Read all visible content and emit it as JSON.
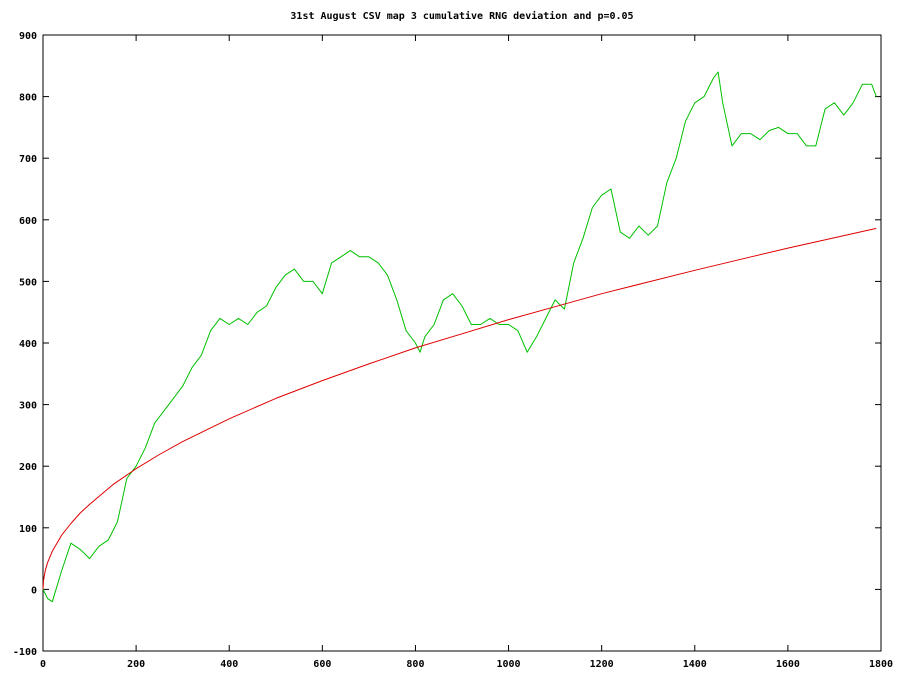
{
  "chart_data": {
    "type": "line",
    "title": "31st August CSV map 3 cumulative RNG deviation and p=0.05",
    "xlabel": "",
    "ylabel": "",
    "xlim": [
      0,
      1800
    ],
    "ylim": [
      -100,
      900
    ],
    "x_ticks": [
      0,
      200,
      400,
      600,
      800,
      1000,
      1200,
      1400,
      1600,
      1800
    ],
    "y_ticks": [
      -100,
      0,
      100,
      200,
      300,
      400,
      500,
      600,
      700,
      800,
      900
    ],
    "grid": false,
    "legend": "none",
    "series": [
      {
        "color": "#00c000",
        "x": [
          0,
          10,
          20,
          40,
          60,
          80,
          100,
          120,
          140,
          160,
          180,
          200,
          220,
          240,
          260,
          280,
          300,
          320,
          340,
          360,
          380,
          400,
          420,
          440,
          460,
          480,
          500,
          520,
          540,
          560,
          580,
          600,
          620,
          640,
          660,
          680,
          700,
          720,
          740,
          760,
          780,
          800,
          810,
          820,
          840,
          860,
          880,
          900,
          920,
          940,
          960,
          980,
          1000,
          1020,
          1040,
          1060,
          1080,
          1100,
          1120,
          1140,
          1160,
          1180,
          1200,
          1220,
          1240,
          1260,
          1280,
          1300,
          1320,
          1340,
          1360,
          1380,
          1400,
          1420,
          1440,
          1450,
          1460,
          1480,
          1500,
          1520,
          1540,
          1560,
          1580,
          1600,
          1620,
          1640,
          1660,
          1680,
          1700,
          1720,
          1740,
          1760,
          1780,
          1790
        ],
        "values": [
          0,
          -15,
          -20,
          30,
          75,
          65,
          50,
          70,
          80,
          110,
          180,
          200,
          230,
          270,
          290,
          310,
          330,
          360,
          380,
          420,
          440,
          430,
          440,
          430,
          450,
          460,
          490,
          510,
          520,
          500,
          500,
          480,
          530,
          540,
          550,
          540,
          540,
          530,
          510,
          470,
          420,
          400,
          385,
          410,
          430,
          470,
          480,
          460,
          430,
          430,
          440,
          430,
          430,
          420,
          385,
          410,
          440,
          470,
          455,
          530,
          570,
          620,
          640,
          650,
          580,
          570,
          590,
          575,
          590,
          660,
          700,
          760,
          790,
          800,
          830,
          840,
          790,
          720,
          740,
          740,
          730,
          745,
          750,
          740,
          740,
          720,
          720,
          780,
          790,
          770,
          790,
          820,
          820,
          800
        ]
      },
      {
        "color": "#e00000",
        "function": "13.84 * sqrt(x)",
        "x": [
          0,
          1,
          5,
          10,
          20,
          40,
          60,
          80,
          100,
          150,
          200,
          250,
          300,
          400,
          500,
          600,
          700,
          800,
          900,
          1000,
          1100,
          1200,
          1300,
          1400,
          1500,
          1600,
          1700,
          1790
        ],
        "values": [
          0,
          14,
          31,
          44,
          62,
          88,
          107,
          124,
          138,
          170,
          196,
          219,
          240,
          277,
          310,
          339,
          366,
          392,
          415,
          438,
          459,
          480,
          499,
          518,
          536,
          554,
          571,
          586
        ]
      }
    ]
  }
}
